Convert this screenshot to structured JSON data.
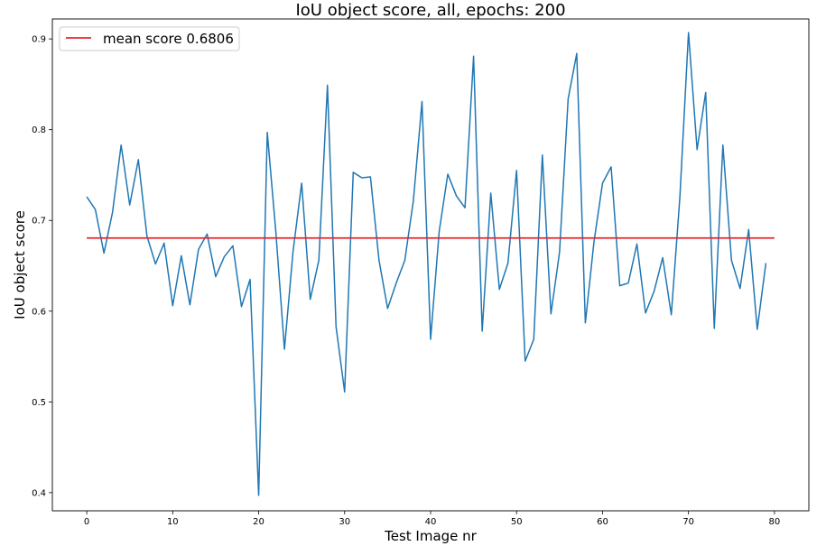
{
  "chart_data": {
    "type": "line",
    "title": "IoU object score, all, epochs: 200",
    "xlabel": "Test Image nr",
    "ylabel": "IoU object score",
    "xlim": [
      -4,
      84
    ],
    "ylim": [
      0.38,
      0.922
    ],
    "xticks": [
      0,
      10,
      20,
      30,
      40,
      50,
      60,
      70,
      80
    ],
    "yticks": [
      0.4,
      0.5,
      0.6,
      0.7,
      0.8,
      0.9
    ],
    "xtick_labels": [
      "0",
      "10",
      "20",
      "30",
      "40",
      "50",
      "60",
      "70",
      "80"
    ],
    "ytick_labels": [
      "0.4",
      "0.5",
      "0.6",
      "0.7",
      "0.8",
      "0.9"
    ],
    "grid": false,
    "legend_position": "top-left",
    "series": [
      {
        "name": "",
        "color": "#1f77b4",
        "x": [
          0,
          1,
          2,
          3,
          4,
          5,
          6,
          7,
          8,
          9,
          10,
          11,
          12,
          13,
          14,
          15,
          16,
          17,
          18,
          19,
          20,
          21,
          22,
          23,
          24,
          25,
          26,
          27,
          28,
          29,
          30,
          31,
          32,
          33,
          34,
          35,
          36,
          37,
          38,
          39,
          40,
          41,
          42,
          43,
          44,
          45,
          46,
          47,
          48,
          49,
          50,
          51,
          52,
          53,
          54,
          55,
          56,
          57,
          58,
          59,
          60,
          61,
          62,
          63,
          64,
          65,
          66,
          67,
          68,
          69,
          70,
          71,
          72,
          73,
          74,
          75,
          76,
          77,
          78,
          79
        ],
        "values": [
          0.726,
          0.712,
          0.664,
          0.709,
          0.783,
          0.717,
          0.767,
          0.683,
          0.652,
          0.675,
          0.606,
          0.661,
          0.607,
          0.668,
          0.685,
          0.638,
          0.66,
          0.672,
          0.605,
          0.635,
          0.397,
          0.797,
          0.687,
          0.558,
          0.666,
          0.741,
          0.613,
          0.656,
          0.849,
          0.583,
          0.511,
          0.753,
          0.747,
          0.748,
          0.656,
          0.603,
          0.631,
          0.656,
          0.722,
          0.831,
          0.569,
          0.688,
          0.751,
          0.727,
          0.714,
          0.881,
          0.578,
          0.73,
          0.624,
          0.653,
          0.755,
          0.545,
          0.569,
          0.772,
          0.597,
          0.665,
          0.834,
          0.884,
          0.587,
          0.676,
          0.741,
          0.759,
          0.628,
          0.631,
          0.674,
          0.598,
          0.622,
          0.659,
          0.596,
          0.726,
          0.907,
          0.778,
          0.841,
          0.581,
          0.783,
          0.656,
          0.625,
          0.69,
          0.58,
          0.653
        ]
      },
      {
        "name": "mean score 0.6806",
        "color": "#e8262c",
        "x": [
          0,
          80
        ],
        "values": [
          0.6806,
          0.6806
        ]
      }
    ]
  }
}
